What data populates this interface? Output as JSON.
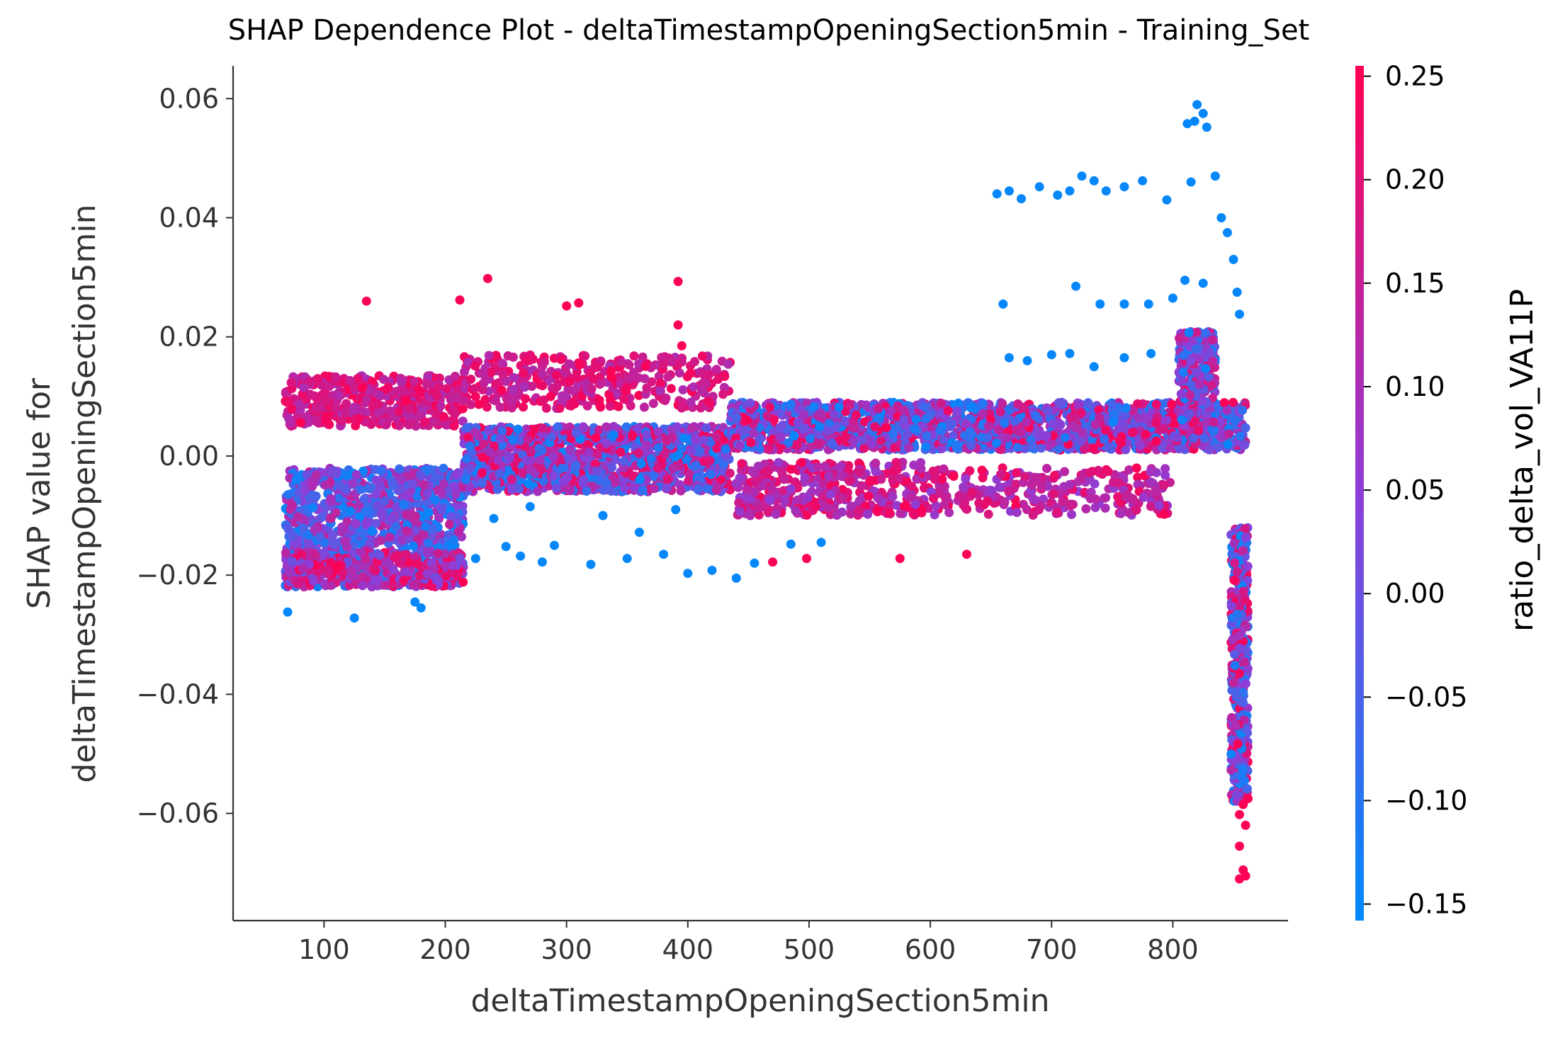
{
  "chart_data": {
    "type": "scatter",
    "title": "SHAP Dependence Plot - deltaTimestampOpeningSection5min - Training_Set",
    "xlabel": "deltaTimestampOpeningSection5min",
    "ylabel_lines": [
      "SHAP value for",
      "deltaTimestampOpeningSection5min"
    ],
    "xlim": [
      25,
      895
    ],
    "ylim": [
      -0.078,
      0.0655
    ],
    "xticks": [
      100,
      200,
      300,
      400,
      500,
      600,
      700,
      800
    ],
    "xtick_labels": [
      "100",
      "200",
      "300",
      "400",
      "500",
      "600",
      "700",
      "800"
    ],
    "yticks": [
      0.06,
      0.04,
      0.02,
      0.0,
      -0.02,
      -0.04,
      -0.06
    ],
    "ytick_labels": [
      "0.06",
      "0.04",
      "0.02",
      "0.00",
      "−0.02",
      "−0.04",
      "−0.06"
    ],
    "colorbar": {
      "label": "ratio_delta_vol_VA11P",
      "range": [
        -0.158,
        0.255
      ],
      "ticks": [
        0.25,
        0.2,
        0.15,
        0.1,
        0.05,
        0.0,
        -0.05,
        -0.1,
        -0.15
      ],
      "tick_labels": [
        "0.25",
        "0.20",
        "0.15",
        "0.10",
        "0.05",
        "0.00",
        "−0.05",
        "−0.10",
        "−0.15"
      ],
      "color_low": "#008afb",
      "color_mid": "#8d3ed8",
      "color_high": "#ff0051"
    },
    "grid": false,
    "clusters": [
      {
        "x": [
          68,
          215
        ],
        "y": [
          -0.022,
          -0.002
        ],
        "c": [
          -0.15,
          0.15
        ],
        "n": 1100
      },
      {
        "x": [
          68,
          215
        ],
        "y": [
          0.005,
          0.0135
        ],
        "c": [
          0.1,
          0.25
        ],
        "n": 420
      },
      {
        "x": [
          68,
          215
        ],
        "y": [
          -0.022,
          -0.016
        ],
        "c": [
          0.0,
          0.25
        ],
        "n": 250
      },
      {
        "x": [
          215,
          435
        ],
        "y": [
          -0.006,
          0.005
        ],
        "c": [
          -0.15,
          0.25
        ],
        "n": 1300
      },
      {
        "x": [
          215,
          435
        ],
        "y": [
          0.008,
          0.017
        ],
        "c": [
          0.1,
          0.25
        ],
        "n": 360
      },
      {
        "x": [
          435,
          860
        ],
        "y": [
          0.001,
          0.009
        ],
        "c": [
          -0.15,
          0.25
        ],
        "n": 1900
      },
      {
        "x": [
          440,
          600
        ],
        "y": [
          -0.01,
          -0.001
        ],
        "c": [
          0.05,
          0.25
        ],
        "n": 380
      },
      {
        "x": [
          600,
          800
        ],
        "y": [
          -0.01,
          -0.002
        ],
        "c": [
          0.05,
          0.25
        ],
        "n": 260
      },
      {
        "x": [
          805,
          835
        ],
        "y": [
          0.009,
          0.021
        ],
        "c": [
          -0.15,
          0.2
        ],
        "n": 220
      },
      {
        "x": [
          848,
          862
        ],
        "y": [
          -0.058,
          -0.012
        ],
        "c": [
          -0.15,
          0.25
        ],
        "n": 380
      }
    ],
    "points": [
      [
        820,
        0.059,
        -0.15
      ],
      [
        825,
        0.0575,
        -0.15
      ],
      [
        812,
        0.0558,
        -0.15
      ],
      [
        828,
        0.0552,
        -0.15
      ],
      [
        818,
        0.0562,
        -0.15
      ],
      [
        655,
        0.044,
        -0.15
      ],
      [
        665,
        0.0445,
        -0.15
      ],
      [
        675,
        0.0432,
        -0.15
      ],
      [
        690,
        0.0452,
        -0.15
      ],
      [
        705,
        0.0438,
        -0.15
      ],
      [
        715,
        0.0445,
        -0.15
      ],
      [
        725,
        0.047,
        -0.15
      ],
      [
        735,
        0.0462,
        -0.15
      ],
      [
        745,
        0.0445,
        -0.15
      ],
      [
        760,
        0.0452,
        -0.15
      ],
      [
        775,
        0.0462,
        -0.15
      ],
      [
        795,
        0.043,
        -0.15
      ],
      [
        815,
        0.046,
        -0.15
      ],
      [
        835,
        0.047,
        -0.15
      ],
      [
        840,
        0.04,
        -0.15
      ],
      [
        845,
        0.0375,
        -0.15
      ],
      [
        850,
        0.033,
        -0.15
      ],
      [
        660,
        0.0255,
        -0.15
      ],
      [
        720,
        0.0285,
        -0.15
      ],
      [
        740,
        0.0255,
        -0.15
      ],
      [
        760,
        0.0255,
        -0.15
      ],
      [
        780,
        0.0255,
        -0.15
      ],
      [
        800,
        0.0265,
        -0.15
      ],
      [
        810,
        0.0295,
        -0.15
      ],
      [
        825,
        0.029,
        -0.15
      ],
      [
        665,
        0.0165,
        -0.15
      ],
      [
        680,
        0.016,
        -0.15
      ],
      [
        700,
        0.017,
        -0.15
      ],
      [
        715,
        0.0172,
        -0.15
      ],
      [
        735,
        0.015,
        -0.15
      ],
      [
        760,
        0.0165,
        -0.15
      ],
      [
        782,
        0.0172,
        -0.15
      ],
      [
        855,
        0.0238,
        -0.15
      ],
      [
        853,
        0.0275,
        -0.15
      ],
      [
        135,
        0.026,
        0.25
      ],
      [
        212,
        0.0262,
        0.25
      ],
      [
        235,
        0.0298,
        0.25
      ],
      [
        300,
        0.0252,
        0.25
      ],
      [
        310,
        0.0257,
        0.25
      ],
      [
        392,
        0.0293,
        0.25
      ],
      [
        392,
        0.022,
        0.25
      ],
      [
        395,
        0.0185,
        0.25
      ],
      [
        70,
        -0.0262,
        -0.15
      ],
      [
        125,
        -0.0272,
        -0.15
      ],
      [
        180,
        -0.0255,
        -0.15
      ],
      [
        175,
        -0.0245,
        -0.15
      ],
      [
        250,
        -0.0152,
        -0.15
      ],
      [
        262,
        -0.0168,
        -0.15
      ],
      [
        280,
        -0.0178,
        -0.15
      ],
      [
        290,
        -0.015,
        -0.15
      ],
      [
        320,
        -0.0182,
        -0.15
      ],
      [
        350,
        -0.0172,
        -0.15
      ],
      [
        380,
        -0.0165,
        -0.15
      ],
      [
        400,
        -0.0197,
        -0.15
      ],
      [
        420,
        -0.0192,
        -0.15
      ],
      [
        440,
        -0.0205,
        -0.15
      ],
      [
        455,
        -0.018,
        -0.15
      ],
      [
        485,
        -0.0148,
        -0.15
      ],
      [
        510,
        -0.0145,
        -0.15
      ],
      [
        470,
        -0.0178,
        0.25
      ],
      [
        498,
        -0.0172,
        0.25
      ],
      [
        575,
        -0.0172,
        0.25
      ],
      [
        630,
        -0.0165,
        0.25
      ],
      [
        225,
        -0.0172,
        -0.15
      ],
      [
        240,
        -0.0105,
        -0.15
      ],
      [
        360,
        -0.0128,
        -0.15
      ],
      [
        270,
        -0.0085,
        -0.15
      ],
      [
        330,
        -0.01,
        -0.15
      ],
      [
        390,
        -0.009,
        -0.15
      ],
      [
        855,
        -0.0655,
        0.25
      ],
      [
        858,
        -0.0695,
        0.25
      ],
      [
        860,
        -0.0705,
        0.25
      ],
      [
        855,
        -0.071,
        0.25
      ],
      [
        860,
        -0.062,
        0.25
      ],
      [
        858,
        -0.0585,
        0.25
      ],
      [
        855,
        -0.0602,
        0.25
      ],
      [
        862,
        -0.0575,
        0.25
      ]
    ]
  }
}
